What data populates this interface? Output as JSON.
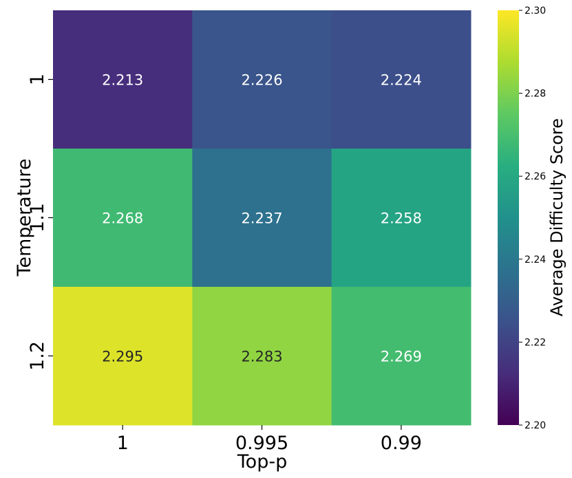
{
  "chart_data": {
    "type": "heatmap",
    "xlabel": "Top-p",
    "ylabel": "Temperature",
    "x_categories": [
      "1",
      "0.995",
      "0.99"
    ],
    "y_categories": [
      "1",
      "1.1",
      "1.2"
    ],
    "values": [
      [
        2.213,
        2.226,
        2.224
      ],
      [
        2.268,
        2.237,
        2.258
      ],
      [
        2.295,
        2.283,
        2.269
      ]
    ],
    "cell_labels": [
      [
        "2.213",
        "2.226",
        "2.224"
      ],
      [
        "2.268",
        "2.237",
        "2.258"
      ],
      [
        "2.295",
        "2.283",
        "2.269"
      ]
    ],
    "colormap": "viridis",
    "colorbar": {
      "label": "Average Difficulty Score",
      "vmin": 2.2,
      "vmax": 2.3,
      "ticks": [
        2.2,
        2.22,
        2.24,
        2.26,
        2.28,
        2.3
      ],
      "tick_labels": [
        "2.20",
        "2.22",
        "2.24",
        "2.26",
        "2.28",
        "2.30"
      ]
    }
  }
}
